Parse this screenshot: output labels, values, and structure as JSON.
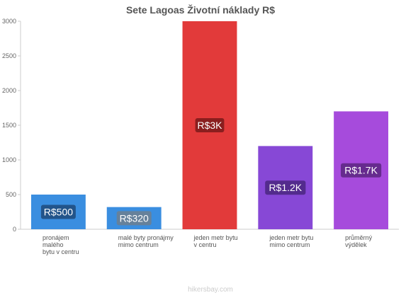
{
  "chart_data": {
    "type": "bar",
    "title": "Sete Lagoas Životní náklady R$",
    "xlabel": "",
    "ylabel": "",
    "ylim": [
      0,
      3000
    ],
    "yticks": [
      0,
      500,
      1000,
      1500,
      2000,
      2500,
      3000
    ],
    "grid": false,
    "categories": [
      [
        "pronájem",
        "malého",
        "bytu v centru"
      ],
      [
        "malé byty pronájmy",
        "mimo centrum"
      ],
      [
        "jeden metr bytu",
        "v centru"
      ],
      [
        "jeden metr bytu",
        "mimo centrum"
      ],
      [
        "průměrný",
        "výdělek"
      ]
    ],
    "values": [
      500,
      320,
      3000,
      1200,
      1700
    ],
    "data_labels": [
      "R$500",
      "R$320",
      "R$3K",
      "R$1.2K",
      "R$1.7K"
    ],
    "colors": [
      "#3a8ee0",
      "#3a8ee0",
      "#e23a3a",
      "#8748d6",
      "#a64bdc"
    ],
    "label_bg_colors": [
      "#1f4a7a",
      "#6f7f8e",
      "#7a1a1a",
      "#4a2780",
      "#5a2680"
    ]
  },
  "watermark": "hikersbay.com"
}
